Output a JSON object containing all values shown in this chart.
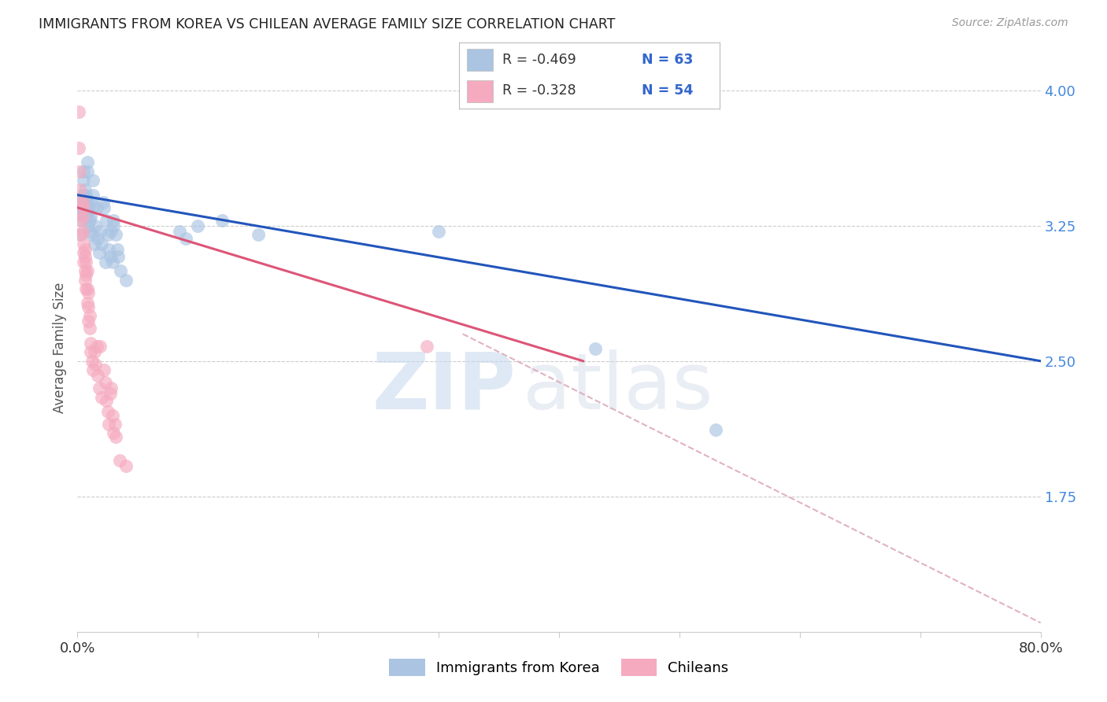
{
  "title": "IMMIGRANTS FROM KOREA VS CHILEAN AVERAGE FAMILY SIZE CORRELATION CHART",
  "source": "Source: ZipAtlas.com",
  "ylabel": "Average Family Size",
  "yticks_right": [
    4.0,
    3.25,
    2.5,
    1.75
  ],
  "xmin": 0.0,
  "xmax": 0.8,
  "ymin": 1.0,
  "ymax": 4.15,
  "watermark_zip": "ZIP",
  "watermark_atlas": "atlas",
  "legend_label_blue": "Immigrants from Korea",
  "legend_label_pink": "Chileans",
  "legend_R_blue": "R = -0.469",
  "legend_N_blue": "N = 63",
  "legend_R_pink": "R = -0.328",
  "legend_N_pink": "N = 54",
  "blue_color": "#aac4e2",
  "pink_color": "#f5aabf",
  "blue_line_color": "#2255bb",
  "pink_line_color": "#dd5577",
  "dashed_line_color": "#ddaabb",
  "blue_scatter": [
    [
      0.001,
      3.33
    ],
    [
      0.002,
      3.2
    ],
    [
      0.002,
      3.35
    ],
    [
      0.003,
      3.28
    ],
    [
      0.003,
      3.4
    ],
    [
      0.004,
      3.35
    ],
    [
      0.004,
      3.42
    ],
    [
      0.004,
      3.38
    ],
    [
      0.005,
      3.3
    ],
    [
      0.005,
      3.55
    ],
    [
      0.005,
      3.5
    ],
    [
      0.006,
      3.45
    ],
    [
      0.006,
      3.38
    ],
    [
      0.006,
      3.35
    ],
    [
      0.006,
      3.3
    ],
    [
      0.007,
      3.4
    ],
    [
      0.007,
      3.35
    ],
    [
      0.007,
      3.42
    ],
    [
      0.007,
      3.38
    ],
    [
      0.008,
      3.6
    ],
    [
      0.008,
      3.55
    ],
    [
      0.008,
      3.3
    ],
    [
      0.009,
      3.25
    ],
    [
      0.009,
      3.35
    ],
    [
      0.01,
      3.28
    ],
    [
      0.01,
      3.22
    ],
    [
      0.011,
      3.38
    ],
    [
      0.011,
      3.3
    ],
    [
      0.012,
      3.35
    ],
    [
      0.012,
      3.2
    ],
    [
      0.013,
      3.5
    ],
    [
      0.013,
      3.42
    ],
    [
      0.014,
      3.15
    ],
    [
      0.015,
      3.25
    ],
    [
      0.016,
      3.35
    ],
    [
      0.017,
      3.18
    ],
    [
      0.018,
      3.1
    ],
    [
      0.019,
      3.22
    ],
    [
      0.02,
      3.15
    ],
    [
      0.021,
      3.38
    ],
    [
      0.022,
      3.35
    ],
    [
      0.023,
      3.05
    ],
    [
      0.024,
      3.28
    ],
    [
      0.025,
      3.2
    ],
    [
      0.026,
      3.12
    ],
    [
      0.027,
      3.08
    ],
    [
      0.028,
      3.22
    ],
    [
      0.029,
      3.05
    ],
    [
      0.03,
      3.28
    ],
    [
      0.03,
      3.25
    ],
    [
      0.032,
      3.2
    ],
    [
      0.033,
      3.12
    ],
    [
      0.034,
      3.08
    ],
    [
      0.036,
      3.0
    ],
    [
      0.04,
      2.95
    ],
    [
      0.085,
      3.22
    ],
    [
      0.09,
      3.18
    ],
    [
      0.1,
      3.25
    ],
    [
      0.12,
      3.28
    ],
    [
      0.15,
      3.2
    ],
    [
      0.3,
      3.22
    ],
    [
      0.43,
      2.57
    ],
    [
      0.53,
      2.12
    ]
  ],
  "pink_scatter": [
    [
      0.001,
      3.88
    ],
    [
      0.001,
      3.68
    ],
    [
      0.002,
      3.55
    ],
    [
      0.002,
      3.45
    ],
    [
      0.003,
      3.38
    ],
    [
      0.003,
      3.28
    ],
    [
      0.003,
      3.2
    ],
    [
      0.004,
      3.38
    ],
    [
      0.004,
      3.3
    ],
    [
      0.004,
      3.22
    ],
    [
      0.005,
      3.35
    ],
    [
      0.005,
      3.15
    ],
    [
      0.005,
      3.1
    ],
    [
      0.005,
      3.05
    ],
    [
      0.006,
      3.12
    ],
    [
      0.006,
      3.08
    ],
    [
      0.006,
      3.0
    ],
    [
      0.006,
      2.95
    ],
    [
      0.007,
      3.05
    ],
    [
      0.007,
      2.98
    ],
    [
      0.007,
      2.9
    ],
    [
      0.008,
      3.0
    ],
    [
      0.008,
      2.9
    ],
    [
      0.008,
      2.82
    ],
    [
      0.009,
      2.88
    ],
    [
      0.009,
      2.8
    ],
    [
      0.009,
      2.72
    ],
    [
      0.01,
      2.75
    ],
    [
      0.01,
      2.68
    ],
    [
      0.011,
      2.6
    ],
    [
      0.011,
      2.55
    ],
    [
      0.012,
      2.5
    ],
    [
      0.013,
      2.45
    ],
    [
      0.014,
      2.55
    ],
    [
      0.015,
      2.48
    ],
    [
      0.016,
      2.58
    ],
    [
      0.017,
      2.42
    ],
    [
      0.018,
      2.35
    ],
    [
      0.019,
      2.58
    ],
    [
      0.02,
      2.3
    ],
    [
      0.022,
      2.45
    ],
    [
      0.023,
      2.38
    ],
    [
      0.024,
      2.28
    ],
    [
      0.025,
      2.22
    ],
    [
      0.026,
      2.15
    ],
    [
      0.027,
      2.32
    ],
    [
      0.028,
      2.35
    ],
    [
      0.029,
      2.2
    ],
    [
      0.03,
      2.1
    ],
    [
      0.031,
      2.15
    ],
    [
      0.032,
      2.08
    ],
    [
      0.035,
      1.95
    ],
    [
      0.04,
      1.92
    ],
    [
      0.29,
      2.58
    ]
  ],
  "blue_line_x": [
    0.0,
    0.8
  ],
  "blue_line_y": [
    3.42,
    2.5
  ],
  "pink_line_x": [
    0.0,
    0.42
  ],
  "pink_line_y": [
    3.35,
    2.5
  ],
  "dashed_line_x": [
    0.32,
    0.8
  ],
  "dashed_line_y": [
    2.65,
    1.05
  ]
}
